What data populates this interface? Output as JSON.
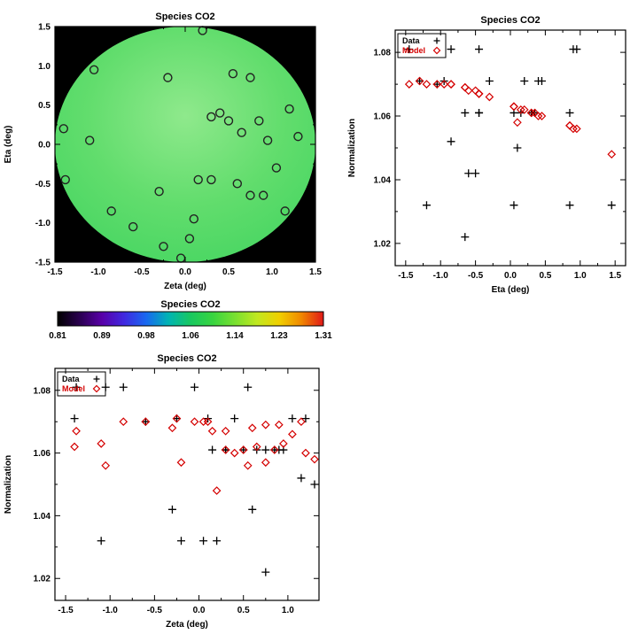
{
  "page": {
    "background": "#ffffff"
  },
  "palette": {
    "axis": "#000000",
    "data_marker": "#000000",
    "model_marker": "#d40000",
    "source_marker": "#222222",
    "field_background": "#000000"
  },
  "chart_data": [
    {
      "id": "field_map",
      "type": "scatter",
      "title": "Species CO2",
      "xlabel": "Zeta (deg)",
      "ylabel": "Eta (deg)",
      "xlim": [
        -1.5,
        1.5
      ],
      "ylim": [
        -1.5,
        1.5
      ],
      "xticks": [
        -1.5,
        -1.0,
        -0.5,
        0.0,
        0.5,
        1.0,
        1.5
      ],
      "xtick_labels": [
        "-1.5",
        "-1.0",
        "-0.5",
        "0.0",
        "0.5",
        "1.0",
        "1.5"
      ],
      "yticks": [
        -1.5,
        -1.0,
        -0.5,
        0.0,
        0.5,
        1.0,
        1.5
      ],
      "ytick_labels": [
        "-1.5",
        "-1.0",
        "-0.5",
        "0.0",
        "0.5",
        "1.0",
        "1.5"
      ],
      "grid": false,
      "field": {
        "background": "#000000",
        "disk_colors": [
          "#8fe98c",
          "#62dd6d",
          "#41d45f"
        ],
        "value_range": [
          0.81,
          1.31
        ]
      },
      "series": [
        {
          "name": "sources",
          "marker": "circle",
          "color": "#222222",
          "size": 4.5,
          "x": [
            -1.4,
            -1.38,
            -1.05,
            -1.1,
            -0.85,
            -0.6,
            -0.3,
            -0.2,
            -0.25,
            -0.05,
            0.05,
            0.1,
            0.15,
            0.2,
            0.3,
            0.4,
            0.5,
            0.55,
            0.75,
            0.65,
            0.6,
            0.75,
            0.9,
            1.05,
            0.95,
            1.2,
            0.85,
            1.15,
            0.3,
            1.3
          ],
          "y": [
            0.2,
            -0.45,
            0.95,
            0.05,
            -0.85,
            -1.05,
            -0.6,
            0.85,
            -1.3,
            -1.45,
            -1.2,
            -0.95,
            -0.45,
            1.45,
            0.35,
            0.4,
            0.3,
            0.9,
            0.85,
            0.15,
            -0.5,
            -0.65,
            -0.65,
            -0.3,
            0.05,
            0.45,
            0.3,
            -0.85,
            -0.45,
            0.1
          ]
        }
      ]
    },
    {
      "id": "norm_vs_eta",
      "type": "scatter",
      "title": "Species CO2",
      "xlabel": "Eta (deg)",
      "ylabel": "Normalization",
      "xlim": [
        -1.65,
        1.65
      ],
      "ylim": [
        1.013,
        1.087
      ],
      "xticks": [
        -1.5,
        -1.0,
        -0.5,
        0.0,
        0.5,
        1.0,
        1.5
      ],
      "xtick_labels": [
        "-1.5",
        "-1.0",
        "-0.5",
        "0.0",
        "0.5",
        "1.0",
        "1.5"
      ],
      "yticks": [
        1.02,
        1.04,
        1.06,
        1.08
      ],
      "ytick_labels": [
        "1.02",
        "1.04",
        "1.06",
        "1.08"
      ],
      "grid": false,
      "legend": {
        "position": "top-left",
        "entries": [
          {
            "label": "Data",
            "marker": "plus",
            "color": "#000000"
          },
          {
            "label": "Model",
            "marker": "diamond",
            "color": "#d40000"
          }
        ]
      },
      "series": [
        {
          "name": "Data",
          "marker": "plus",
          "color": "#000000",
          "size": 4.5,
          "x": [
            0.2,
            -0.45,
            0.95,
            0.05,
            -0.85,
            -1.05,
            -0.6,
            0.85,
            -1.3,
            -1.45,
            -1.2,
            -0.95,
            -0.45,
            1.45,
            0.35,
            0.4,
            0.3,
            0.9,
            0.85,
            0.15,
            -0.5,
            -0.65,
            -0.65,
            -0.3,
            0.05,
            0.45,
            0.3,
            -0.85,
            -0.45,
            0.1
          ],
          "y": [
            1.071,
            1.081,
            1.081,
            1.032,
            1.081,
            1.07,
            1.042,
            1.032,
            1.071,
            1.081,
            1.032,
            1.071,
            1.061,
            1.032,
            1.061,
            1.071,
            1.061,
            1.081,
            1.061,
            1.061,
            1.042,
            1.022,
            1.061,
            1.071,
            1.061,
            1.071,
            1.061,
            1.052,
            1.061,
            1.05
          ]
        },
        {
          "name": "Model",
          "marker": "diamond",
          "color": "#d40000",
          "size": 4,
          "x": [
            0.2,
            -0.45,
            0.95,
            0.05,
            -0.85,
            -1.05,
            -0.6,
            0.85,
            -1.3,
            -1.45,
            -1.2,
            -0.95,
            -0.45,
            1.45,
            0.35,
            0.4,
            0.3,
            0.9,
            0.85,
            0.15,
            -0.5,
            -0.65,
            -0.65,
            -0.3,
            0.05,
            0.45,
            0.3,
            -0.85,
            -0.45,
            0.1
          ],
          "y": [
            1.062,
            1.067,
            1.056,
            1.063,
            1.07,
            1.07,
            1.068,
            1.057,
            1.071,
            1.07,
            1.07,
            1.07,
            1.067,
            1.048,
            1.061,
            1.06,
            1.061,
            1.056,
            1.057,
            1.062,
            1.068,
            1.069,
            1.069,
            1.066,
            1.063,
            1.06,
            1.061,
            1.07,
            1.067,
            1.058
          ]
        }
      ]
    },
    {
      "id": "colorbar",
      "type": "colorbar",
      "title": "Species CO2",
      "tick_labels": [
        "0.81",
        "0.89",
        "0.98",
        "1.06",
        "1.14",
        "1.23",
        "1.31"
      ],
      "gradient_stops": [
        "#000000",
        "#2a0050",
        "#5800a8",
        "#4028e0",
        "#1868f0",
        "#00b4b4",
        "#18c860",
        "#38d440",
        "#78e030",
        "#c0e820",
        "#f0d000",
        "#f08800",
        "#e01818"
      ]
    },
    {
      "id": "norm_vs_zeta",
      "type": "scatter",
      "title": "Species CO2",
      "xlabel": "Zeta (deg)",
      "ylabel": "Normalization",
      "xlim": [
        -1.62,
        1.35
      ],
      "ylim": [
        1.013,
        1.087
      ],
      "xticks": [
        -1.5,
        -1.0,
        -0.5,
        0.0,
        0.5,
        1.0
      ],
      "xtick_labels": [
        "-1.5",
        "-1.0",
        "-0.5",
        "0.0",
        "0.5",
        "1.0"
      ],
      "yticks": [
        1.02,
        1.04,
        1.06,
        1.08
      ],
      "ytick_labels": [
        "1.02",
        "1.04",
        "1.06",
        "1.08"
      ],
      "grid": false,
      "legend": {
        "position": "top-left",
        "entries": [
          {
            "label": "Data",
            "marker": "plus",
            "color": "#000000"
          },
          {
            "label": "Model",
            "marker": "diamond",
            "color": "#d40000"
          }
        ]
      },
      "series": [
        {
          "name": "Data",
          "marker": "plus",
          "color": "#000000",
          "size": 4.5,
          "x": [
            -1.4,
            -1.38,
            -1.05,
            -1.1,
            -0.85,
            -0.6,
            -0.3,
            -0.2,
            -0.25,
            -0.05,
            0.05,
            0.1,
            0.15,
            0.2,
            0.3,
            0.4,
            0.5,
            0.55,
            0.75,
            0.65,
            0.6,
            0.75,
            0.9,
            1.05,
            0.95,
            1.2,
            0.85,
            1.15,
            0.3,
            1.3
          ],
          "y": [
            1.071,
            1.081,
            1.081,
            1.032,
            1.081,
            1.07,
            1.042,
            1.032,
            1.071,
            1.081,
            1.032,
            1.071,
            1.061,
            1.032,
            1.061,
            1.071,
            1.061,
            1.081,
            1.061,
            1.061,
            1.042,
            1.022,
            1.061,
            1.071,
            1.061,
            1.071,
            1.061,
            1.052,
            1.061,
            1.05
          ]
        },
        {
          "name": "Model",
          "marker": "diamond",
          "color": "#d40000",
          "size": 4,
          "x": [
            -1.4,
            -1.38,
            -1.05,
            -1.1,
            -0.85,
            -0.6,
            -0.3,
            -0.2,
            -0.25,
            -0.05,
            0.05,
            0.1,
            0.15,
            0.2,
            0.3,
            0.4,
            0.5,
            0.55,
            0.75,
            0.65,
            0.6,
            0.75,
            0.9,
            1.05,
            0.95,
            1.2,
            0.85,
            1.15,
            0.3,
            1.3
          ],
          "y": [
            1.062,
            1.067,
            1.056,
            1.063,
            1.07,
            1.07,
            1.068,
            1.057,
            1.071,
            1.07,
            1.07,
            1.07,
            1.067,
            1.048,
            1.061,
            1.06,
            1.061,
            1.056,
            1.057,
            1.062,
            1.068,
            1.069,
            1.069,
            1.066,
            1.063,
            1.06,
            1.061,
            1.07,
            1.067,
            1.058
          ]
        }
      ]
    }
  ]
}
